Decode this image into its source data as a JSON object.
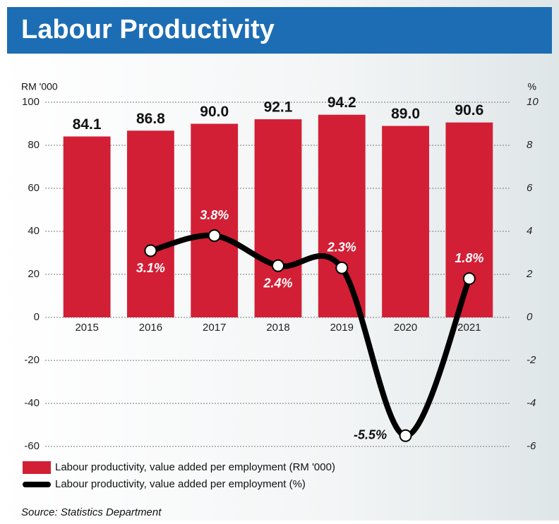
{
  "chart_data": {
    "type": "bar_line",
    "title": "Labour Productivity",
    "y_label": "RM '000",
    "y2_label": "%",
    "source": "Source: Statistics Department",
    "categories": [
      "2015",
      "2016",
      "2017",
      "2018",
      "2019",
      "2020",
      "2021"
    ],
    "series": [
      {
        "name": "Labour productivity, value added per employment (RM '000)",
        "type": "bar",
        "color": "#d21f35",
        "values": [
          84.1,
          86.8,
          90.0,
          92.1,
          94.2,
          89.0,
          90.6
        ],
        "value_labels": [
          "84.1",
          "86.8",
          "90.0",
          "92.1",
          "94.2",
          "89.0",
          "90.6"
        ]
      },
      {
        "name": "Labour productivity, value added per employment (%)",
        "type": "line",
        "color": "#000000",
        "axis": "y2",
        "values": [
          null,
          3.1,
          3.8,
          2.4,
          2.3,
          -5.5,
          1.8
        ],
        "value_labels": [
          null,
          "3.1%",
          "3.8%",
          "2.4%",
          "2.3%",
          "-5.5%",
          "1.8%"
        ]
      }
    ],
    "ylim": [
      -60,
      100
    ],
    "yticks": [
      -60,
      -40,
      -20,
      0,
      20,
      40,
      60,
      80,
      100
    ],
    "y2lim": [
      -6,
      10
    ],
    "y2ticks": [
      -6,
      -4,
      -2,
      0,
      2,
      4,
      6,
      8,
      10
    ],
    "grid": true
  }
}
